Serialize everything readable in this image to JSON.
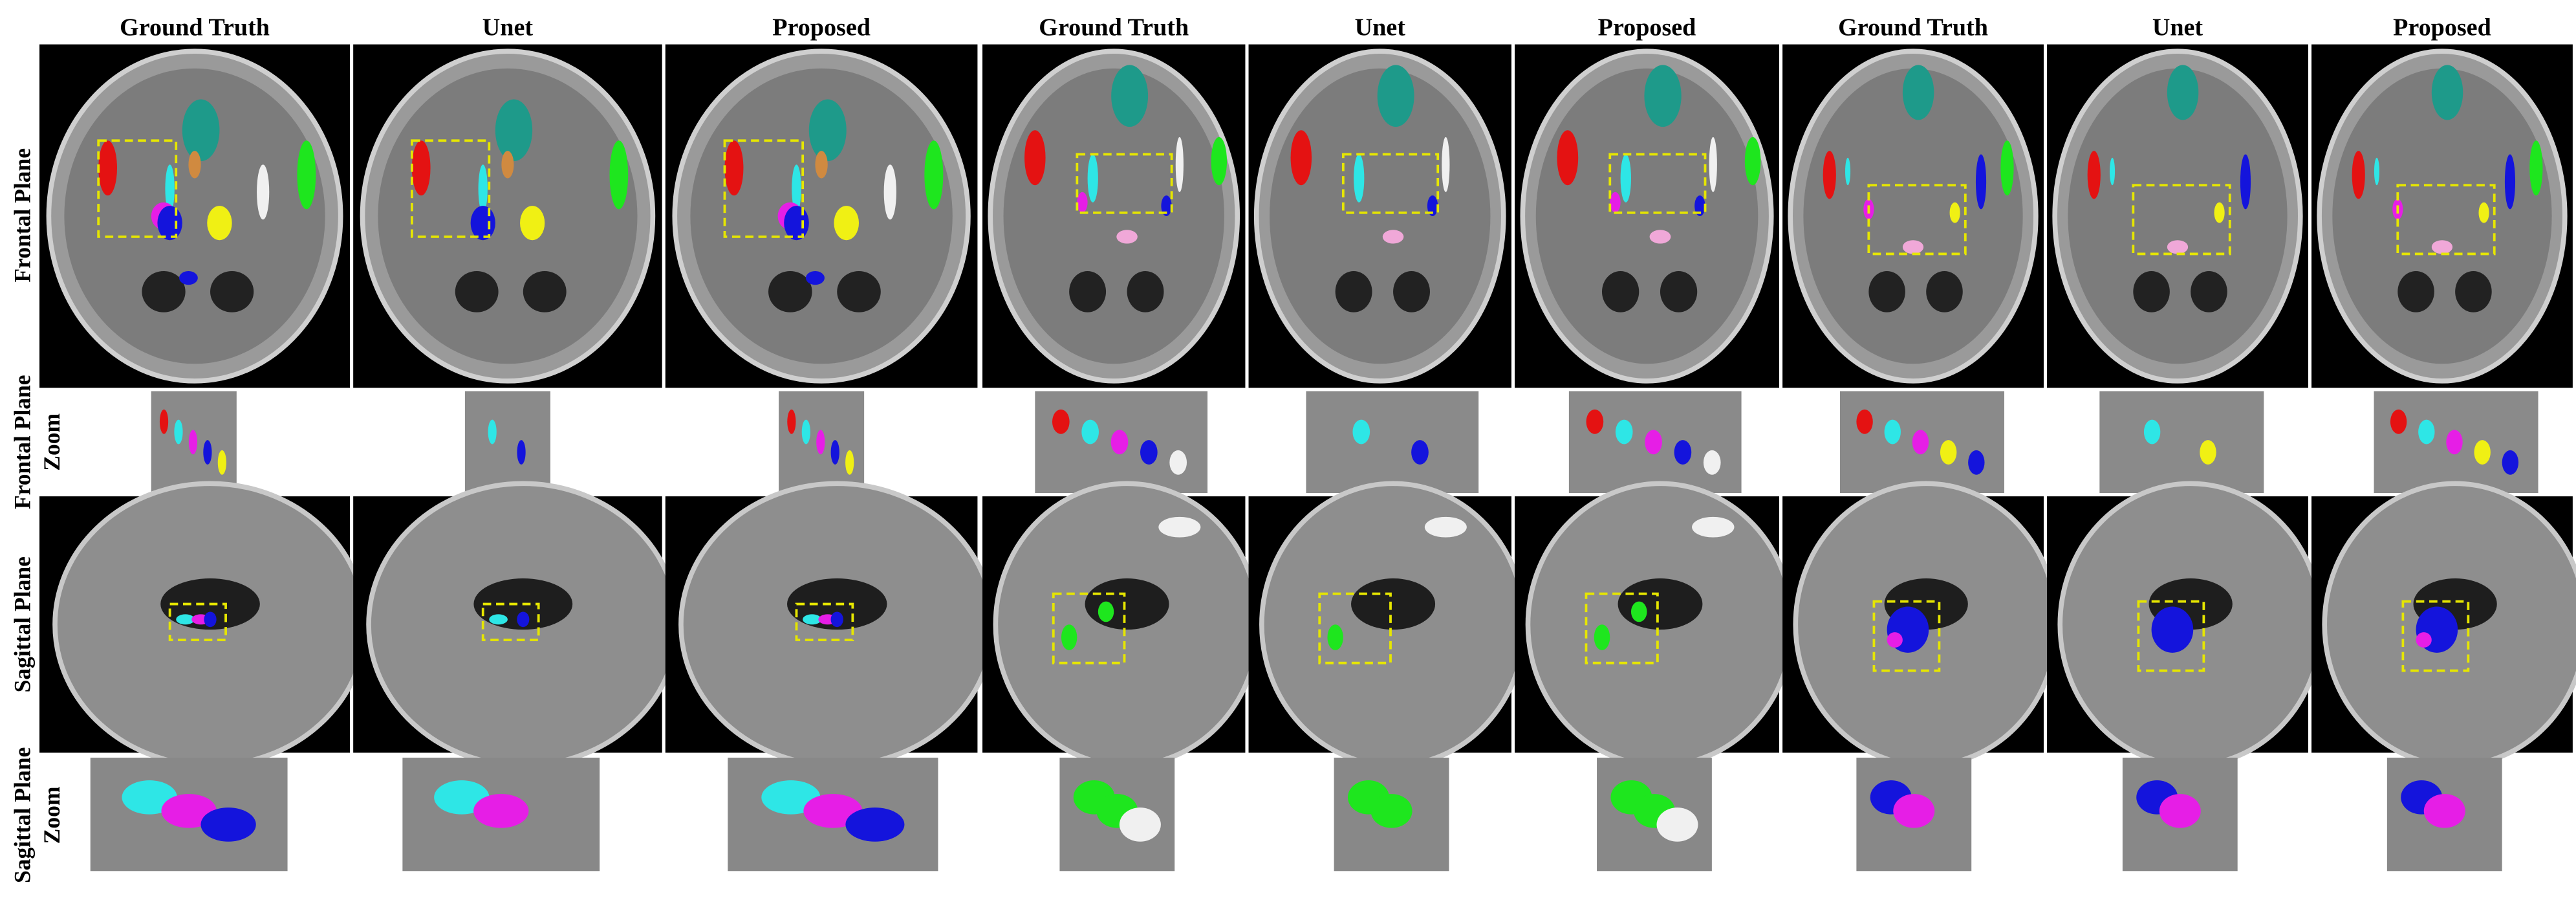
{
  "column_headers": [
    "Ground Truth",
    "Unet",
    "Proposed",
    "Ground Truth",
    "Unet",
    "Proposed",
    "Ground Truth",
    "Unet",
    "Proposed"
  ],
  "row_labels": [
    [
      "Frontal Plane"
    ],
    [
      "Frontal Plane",
      "Zoom"
    ],
    [
      "Sagittal Plane"
    ],
    [
      "Sagittal Plane",
      "Zoom"
    ]
  ]
}
